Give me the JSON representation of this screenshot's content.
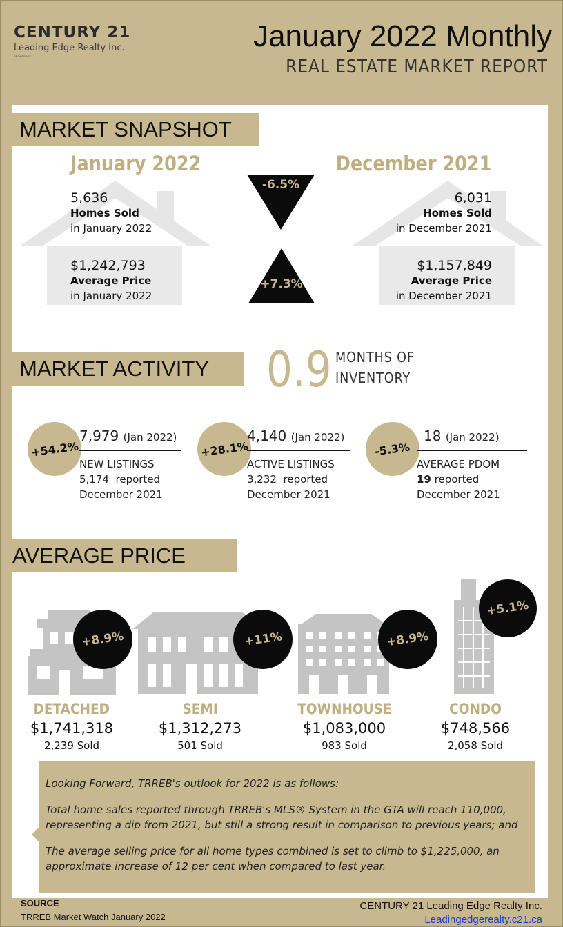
{
  "header": {
    "logo_brand": "CENTURY 21",
    "logo_sub": "Leading Edge Realty Inc.",
    "logo_tiny": "BROKERAGE",
    "title": "January 2022 Monthly",
    "subtitle": "REAL ESTATE MARKET REPORT"
  },
  "snapshot": {
    "heading": "MARKET SNAPSHOT",
    "left": {
      "date": "January 2022",
      "homes_sold": "5,636",
      "homes_sold_label": "Homes Sold",
      "homes_sold_period": "in January 2022",
      "avg_price": "$1,242,793",
      "avg_price_label": "Average Price",
      "avg_price_period": "in January 2022"
    },
    "right": {
      "date": "December 2021",
      "homes_sold": "6,031",
      "homes_sold_label": "Homes Sold",
      "homes_sold_period": "in December 2021",
      "avg_price": "$1,157,849",
      "avg_price_label": "Average Price",
      "avg_price_period": "in December 2021"
    },
    "homes_change": "-6.5%",
    "price_change": "+7.3%"
  },
  "activity": {
    "heading": "MARKET ACTIVITY",
    "months_inventory": "0.9",
    "months_label_1": "MONTHS OF",
    "months_label_2": "INVENTORY",
    "items": [
      {
        "change": "+54.2%",
        "value": "7,979",
        "period": "(Jan 2022)",
        "label": "NEW LISTINGS",
        "prev_value": "5,174",
        "prev_suffix": "reported",
        "prev_period": "December 2021"
      },
      {
        "change": "+28.1%",
        "value": "4,140",
        "period": "(Jan 2022)",
        "label": "ACTIVE LISTINGS",
        "prev_value": "3,232",
        "prev_suffix": "reported",
        "prev_period": "December 2021"
      },
      {
        "change": "-5.3%",
        "value": "18",
        "period": "(Jan 2022)",
        "label": "AVERAGE PDOM",
        "prev_value": "19",
        "prev_suffix": "reported",
        "prev_period": "December 2021"
      }
    ]
  },
  "avg_price": {
    "heading": "AVERAGE PRICE",
    "types": [
      {
        "name": "DETACHED",
        "change": "+8.9%",
        "price": "$1,741,318",
        "sold": "2,239 Sold"
      },
      {
        "name": "SEMI",
        "change": "+11%",
        "price": "$1,312,273",
        "sold": "501 Sold"
      },
      {
        "name": "TOWNHOUSE",
        "change": "+8.9%",
        "price": "$1,083,000",
        "sold": "983 Sold"
      },
      {
        "name": "CONDO",
        "change": "+5.1%",
        "price": "$748,566",
        "sold": "2,058 Sold"
      }
    ]
  },
  "outlook": {
    "p1": "Looking Forward, TRREB's outlook for 2022 is as follows:",
    "p2": "Total home sales reported through TRREB's MLS® System in the GTA will reach 110,000, representing a dip from 2021, but still a strong result in comparison to previous years; and",
    "p3": "The average selling price for all home types combined is set to climb to $1,225,000, an approximate increase of 12 per cent when compared to last year."
  },
  "footer": {
    "source_label": "SOURCE",
    "source_text": "TRREB Market Watch January 2022",
    "company": "CENTURY 21 Leading Edge Realty Inc.",
    "website": "Leadingedgerealty.c21.ca"
  },
  "colors": {
    "gold": "#c7b88f",
    "gold_text": "#c0ae83",
    "dark": "#0b0b0b",
    "house_gray": "#cfcfcf",
    "link": "#1a3ccf"
  }
}
